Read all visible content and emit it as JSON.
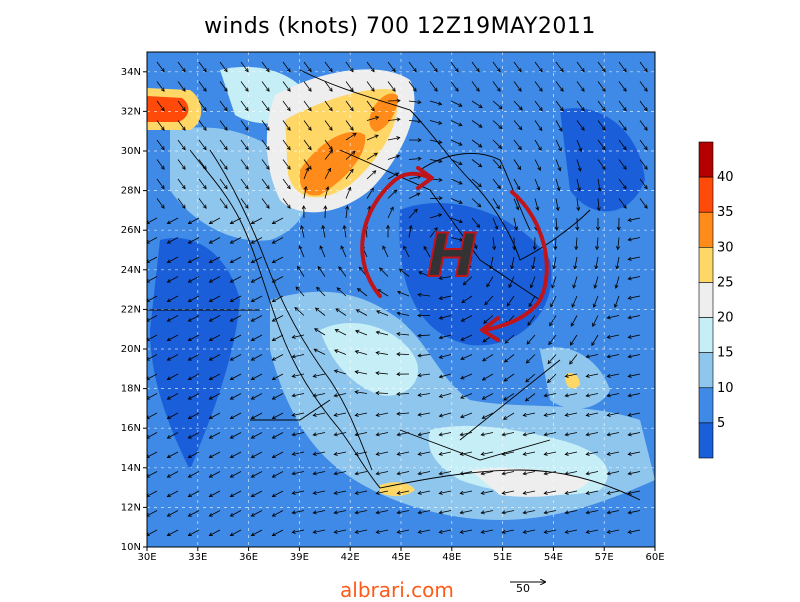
{
  "title": "winds (knots) 700 12Z19MAY2011",
  "lat_labels": [
    "10N",
    "12N",
    "14N",
    "16N",
    "18N",
    "20N",
    "22N",
    "24N",
    "26N",
    "28N",
    "30N",
    "32N",
    "34N"
  ],
  "lon_labels": [
    "30E",
    "33E",
    "36E",
    "39E",
    "42E",
    "45E",
    "48E",
    "51E",
    "54E",
    "57E",
    "60E"
  ],
  "colorbar": {
    "labels": [
      "5",
      "10",
      "15",
      "20",
      "25",
      "30",
      "35",
      "40"
    ],
    "colors": [
      "#1a5fd9",
      "#3e8ae6",
      "#8fc6ee",
      "#c6eef6",
      "#eeeeee",
      "#ffd766",
      "#ff8c1a",
      "#ff4a0a",
      "#b40000"
    ]
  },
  "annotation": {
    "symbol": "H",
    "symbol_color": "#333333",
    "arrow_color": "#c0141a"
  },
  "reference_vector": {
    "value": "50"
  },
  "watermark": "albrari.com"
}
